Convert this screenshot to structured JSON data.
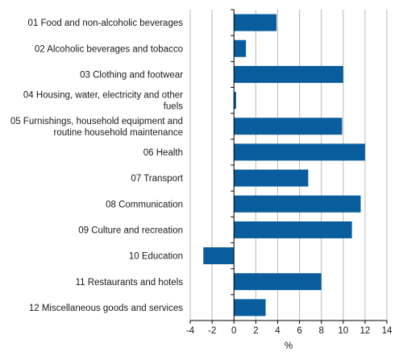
{
  "chart_data": {
    "type": "bar",
    "orientation": "horizontal",
    "categories": [
      "01 Food and non-alcoholic beverages",
      "02 Alcoholic beverages and tobacco",
      "03 Clothing and footwear",
      "04 Housing, water, electricity and other fuels",
      "05 Furnishings, household equipment and routine household maintenance",
      "06 Health",
      "07 Transport",
      "08 Communication",
      "09 Culture and recreation",
      "10 Education",
      "11 Restaurants and hotels",
      "12 Miscellaneous goods and services"
    ],
    "category_label_lines": [
      [
        "01 Food and non-alcoholic beverages"
      ],
      [
        "02 Alcoholic beverages and tobacco"
      ],
      [
        "03 Clothing and footwear"
      ],
      [
        "04 Housing, water, electricity and other",
        "fuels"
      ],
      [
        "05 Furnishings, household equipment and",
        "routine household maintenance"
      ],
      [
        "06 Health"
      ],
      [
        "07 Transport"
      ],
      [
        "08 Communication"
      ],
      [
        "09 Culture and recreation"
      ],
      [
        "10 Education"
      ],
      [
        "11 Restaurants and hotels"
      ],
      [
        "12 Miscellaneous goods and services"
      ]
    ],
    "values": [
      3.9,
      1.1,
      10.0,
      0.2,
      9.9,
      12.0,
      6.8,
      11.6,
      10.8,
      -2.8,
      8.0,
      2.9
    ],
    "xlabel": "%",
    "xlim": [
      -4,
      14
    ],
    "xticks": [
      -4,
      -2,
      0,
      2,
      4,
      6,
      8,
      10,
      12,
      14
    ],
    "grid": true,
    "bar_color": "#0a5d9c",
    "grid_color": "#b9b9b9",
    "axis_color": "#000000"
  }
}
